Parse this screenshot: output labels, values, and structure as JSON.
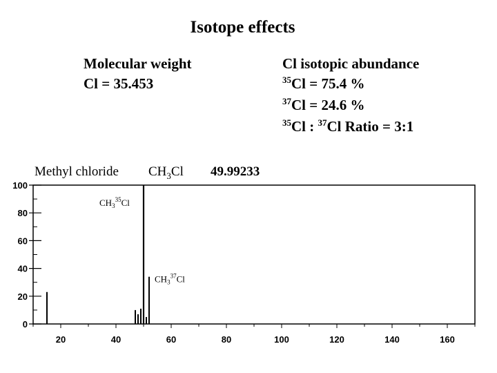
{
  "slide": {
    "title": "Isotope effects",
    "left": {
      "line1": "Molecular weight",
      "line2": "Cl = 35.453"
    },
    "right": {
      "heading": "Cl isotopic abundance",
      "line1_sup": "35",
      "line1_rest": "Cl = 75.4 %",
      "line2_sup": "37",
      "line2_rest": "Cl = 24.6 %",
      "line3_sup_a": "35",
      "line3_mid": "Cl : ",
      "line3_sup_b": "37",
      "line3_rest": "Cl Ratio = 3:1"
    }
  },
  "spectrum_header": {
    "name": "Methyl chloride",
    "formula_prefix": "CH",
    "formula_sub": "3",
    "formula_suffix": "Cl",
    "mass": "49.99233"
  },
  "chart_data": {
    "type": "bar",
    "xlim": [
      10,
      170
    ],
    "ylim": [
      0,
      100
    ],
    "xticks": [
      20,
      40,
      60,
      80,
      100,
      120,
      140,
      160
    ],
    "yticks": [
      0,
      20,
      40,
      60,
      80,
      100
    ],
    "peaks": [
      {
        "x": 15,
        "y": 23
      },
      {
        "x": 47,
        "y": 10
      },
      {
        "x": 48,
        "y": 7
      },
      {
        "x": 49,
        "y": 11
      },
      {
        "x": 50,
        "y": 100
      },
      {
        "x": 51,
        "y": 5
      },
      {
        "x": 52,
        "y": 34
      }
    ],
    "annotations": [
      {
        "text_prefix": "CH",
        "sub": "3",
        "sup": "35",
        "suffix": "Cl",
        "x": 34,
        "y": 85
      },
      {
        "text_prefix": "CH",
        "sub": "3",
        "sup": "37",
        "suffix": "Cl",
        "x": 54,
        "y": 30
      }
    ]
  }
}
